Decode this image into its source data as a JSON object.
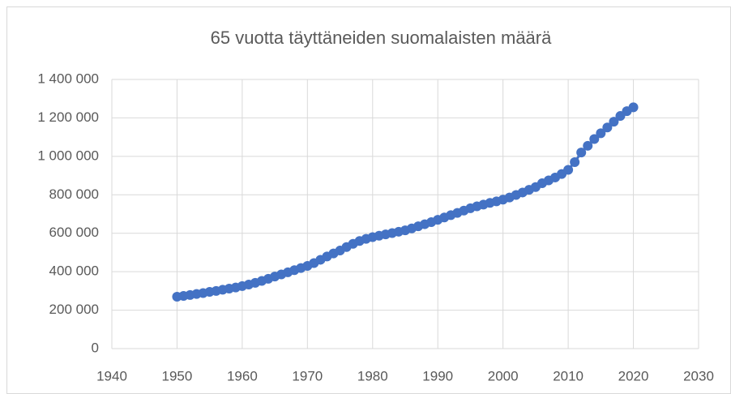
{
  "chart_data": {
    "type": "line",
    "title": "65 vuotta täyttäneiden suomalaisten määrä",
    "x": [
      1950,
      1951,
      1952,
      1953,
      1954,
      1955,
      1956,
      1957,
      1958,
      1959,
      1960,
      1961,
      1962,
      1963,
      1964,
      1965,
      1966,
      1967,
      1968,
      1969,
      1970,
      1971,
      1972,
      1973,
      1974,
      1975,
      1976,
      1977,
      1978,
      1979,
      1980,
      1981,
      1982,
      1983,
      1984,
      1985,
      1986,
      1987,
      1988,
      1989,
      1990,
      1991,
      1992,
      1993,
      1994,
      1995,
      1996,
      1997,
      1998,
      1999,
      2000,
      2001,
      2002,
      2003,
      2004,
      2005,
      2006,
      2007,
      2008,
      2009,
      2010,
      2011,
      2012,
      2013,
      2014,
      2015,
      2016,
      2017,
      2018,
      2019,
      2020
    ],
    "series": [
      {
        "color": "#4472c4",
        "values": [
          270000,
          274000,
          279000,
          284000,
          289000,
          295000,
          300000,
          306000,
          312000,
          318000,
          325000,
          333000,
          342000,
          352000,
          363000,
          375000,
          386000,
          397000,
          408000,
          419000,
          430000,
          445000,
          462000,
          479000,
          495000,
          510000,
          528000,
          545000,
          560000,
          571000,
          580000,
          587000,
          594000,
          601000,
          608000,
          615000,
          625000,
          636000,
          647000,
          658000,
          670000,
          682000,
          694000,
          706000,
          718000,
          730000,
          740000,
          749000,
          758000,
          766000,
          775000,
          786000,
          799000,
          812000,
          826000,
          840000,
          860000,
          875000,
          890000,
          908000,
          930000,
          970000,
          1020000,
          1055000,
          1090000,
          1120000,
          1150000,
          1180000,
          1210000,
          1235000,
          1255000
        ]
      }
    ],
    "xlim": [
      1940,
      2030
    ],
    "xticks": [
      1940,
      1950,
      1960,
      1970,
      1980,
      1990,
      2000,
      2010,
      2020,
      2030
    ],
    "ylim": [
      0,
      1400000
    ],
    "yticks": [
      0,
      {
        "value": 200000,
        "label": "200 000"
      },
      {
        "value": 400000,
        "label": "400 000"
      },
      {
        "value": 600000,
        "label": "600 000"
      },
      {
        "value": 800000,
        "label": "800 000"
      },
      {
        "value": 1000000,
        "label": "1 000 000"
      },
      {
        "value": 1200000,
        "label": "1 200 000"
      },
      {
        "value": 1400000,
        "label": "1 400 000"
      }
    ],
    "grid": true
  }
}
